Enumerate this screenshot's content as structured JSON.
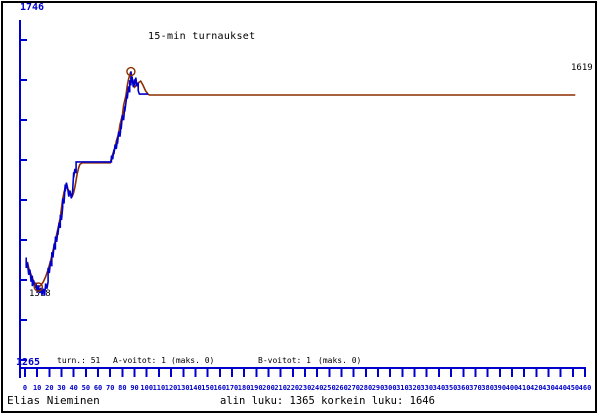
{
  "title": "15-min turnaukset",
  "colors": {
    "axis_blue": "#0000cc",
    "curve_per_game": "#0000cc",
    "curve_smoothed": "#8b2f00",
    "text": "#000000",
    "background": "#ffffff",
    "border": "#000000"
  },
  "y_axis": {
    "top_label": "1746",
    "bottom_label": "1265"
  },
  "stats": {
    "tournaments": "turn.: 51",
    "a_wins": "A-voitot: 1",
    "a_max": "(maks. 0)",
    "b_wins": "B-voitot: 1",
    "b_max": "(maks. 0)"
  },
  "annotations": {
    "min_point_label": "1398",
    "final_value_label": "1619"
  },
  "footer": {
    "player_name": "Elias Nieminen",
    "range_text": "alin luku: 1365 korkein luku: 1646"
  },
  "chart_data": {
    "type": "line",
    "title": "15-min turnaukset",
    "xlabel": "",
    "ylabel": "",
    "xlim": [
      0,
      460
    ],
    "ylim": [
      1265,
      1746
    ],
    "grid": false,
    "x_ticks": [
      0,
      10,
      20,
      30,
      40,
      50,
      60,
      70,
      80,
      90,
      100,
      110,
      120,
      130,
      140,
      150,
      160,
      170,
      180,
      190,
      200,
      210,
      220,
      230,
      240,
      250,
      260,
      270,
      280,
      290,
      300,
      310,
      320,
      330,
      340,
      350,
      360,
      370,
      380,
      390,
      400,
      410,
      420,
      430,
      440,
      450,
      460
    ],
    "y_tick_labels": [
      "1265",
      "1746"
    ],
    "series": [
      {
        "name": "per-game-rating",
        "color": "#0000cc",
        "points": [
          [
            1,
            1432
          ],
          [
            1,
            1420
          ],
          [
            2,
            1426
          ],
          [
            3,
            1412
          ],
          [
            4,
            1418
          ],
          [
            5,
            1404
          ],
          [
            6,
            1411
          ],
          [
            6,
            1399
          ],
          [
            7,
            1406
          ],
          [
            8,
            1396
          ],
          [
            9,
            1403
          ],
          [
            10,
            1392
          ],
          [
            11,
            1400
          ],
          [
            12,
            1391
          ],
          [
            13,
            1397
          ],
          [
            14,
            1389
          ],
          [
            15,
            1396
          ],
          [
            16,
            1388
          ],
          [
            17,
            1402
          ],
          [
            18,
            1396
          ],
          [
            19,
            1404
          ],
          [
            19,
            1420
          ],
          [
            20,
            1414
          ],
          [
            21,
            1428
          ],
          [
            22,
            1422
          ],
          [
            22,
            1438
          ],
          [
            23,
            1432
          ],
          [
            24,
            1448
          ],
          [
            25,
            1441
          ],
          [
            25,
            1456
          ],
          [
            26,
            1450
          ],
          [
            27,
            1464
          ],
          [
            27,
            1458
          ],
          [
            28,
            1472
          ],
          [
            29,
            1466
          ],
          [
            29,
            1481
          ],
          [
            30,
            1475
          ],
          [
            31,
            1490
          ],
          [
            31,
            1500
          ],
          [
            32,
            1494
          ],
          [
            33,
            1516
          ],
          [
            33,
            1508
          ],
          [
            34,
            1518
          ],
          [
            35,
            1512
          ],
          [
            36,
            1502
          ],
          [
            37,
            1509
          ],
          [
            38,
            1500
          ],
          [
            39,
            1506
          ],
          [
            40,
            1530
          ],
          [
            40,
            1524
          ],
          [
            41,
            1534
          ],
          [
            42,
            1529
          ],
          [
            42,
            1542
          ],
          [
            71,
            1542
          ],
          [
            71,
            1549
          ],
          [
            72,
            1545
          ],
          [
            73,
            1556
          ],
          [
            73,
            1551
          ],
          [
            74,
            1562
          ],
          [
            75,
            1557
          ],
          [
            76,
            1569
          ],
          [
            76,
            1563
          ],
          [
            77,
            1577
          ],
          [
            78,
            1571
          ],
          [
            79,
            1586
          ],
          [
            79,
            1580
          ],
          [
            80,
            1596
          ],
          [
            81,
            1590
          ],
          [
            82,
            1606
          ],
          [
            82,
            1600
          ],
          [
            83,
            1611
          ],
          [
            84,
            1622
          ],
          [
            84,
            1615
          ],
          [
            85,
            1629
          ],
          [
            86,
            1622
          ],
          [
            86,
            1636
          ],
          [
            87,
            1630
          ],
          [
            87,
            1646
          ],
          [
            88,
            1633
          ],
          [
            88,
            1640
          ],
          [
            89,
            1628
          ],
          [
            90,
            1637
          ],
          [
            90,
            1630
          ],
          [
            91,
            1639
          ],
          [
            92,
            1629
          ],
          [
            93,
            1633
          ],
          [
            93,
            1624
          ],
          [
            94,
            1620
          ],
          [
            101,
            1620
          ]
        ]
      },
      {
        "name": "smoothed-rating",
        "color": "#8b2f00",
        "extreme_markers_circled": true,
        "points": [
          [
            2,
            1427
          ],
          [
            3,
            1420
          ],
          [
            5,
            1412
          ],
          [
            7,
            1405
          ],
          [
            9,
            1400
          ],
          [
            11,
            1398
          ],
          [
            13,
            1400
          ],
          [
            15,
            1404
          ],
          [
            17,
            1410
          ],
          [
            19,
            1418
          ],
          [
            21,
            1428
          ],
          [
            23,
            1440
          ],
          [
            25,
            1452
          ],
          [
            27,
            1465
          ],
          [
            29,
            1478
          ],
          [
            30,
            1489
          ],
          [
            31,
            1499
          ],
          [
            32,
            1507
          ],
          [
            33,
            1512
          ],
          [
            34,
            1513
          ],
          [
            35,
            1511
          ],
          [
            37,
            1507
          ],
          [
            38,
            1504
          ],
          [
            39,
            1503
          ],
          [
            40,
            1507
          ],
          [
            41,
            1513
          ],
          [
            42,
            1521
          ],
          [
            43,
            1529
          ],
          [
            44,
            1535
          ],
          [
            45,
            1539
          ],
          [
            47,
            1541
          ],
          [
            70,
            1541
          ],
          [
            71,
            1546
          ],
          [
            72,
            1551
          ],
          [
            74,
            1558
          ],
          [
            75,
            1566
          ],
          [
            77,
            1575
          ],
          [
            78,
            1585
          ],
          [
            80,
            1596
          ],
          [
            81,
            1607
          ],
          [
            83,
            1619
          ],
          [
            84,
            1630
          ],
          [
            85,
            1637
          ],
          [
            86,
            1642
          ],
          [
            87,
            1646
          ],
          [
            88,
            1638
          ],
          [
            89,
            1631
          ],
          [
            90,
            1628
          ],
          [
            92,
            1631
          ],
          [
            94,
            1634
          ],
          [
            95,
            1635
          ],
          [
            97,
            1630
          ],
          [
            99,
            1624
          ],
          [
            101,
            1620
          ],
          [
            102,
            1619
          ],
          [
            452,
            1619
          ]
        ]
      }
    ],
    "annotations": {
      "circled_min_value": 1398,
      "circled_max_value": 1646,
      "final_value": 1619,
      "lowest_overall": 1365,
      "highest_overall": 1646,
      "tournaments": 51
    }
  }
}
